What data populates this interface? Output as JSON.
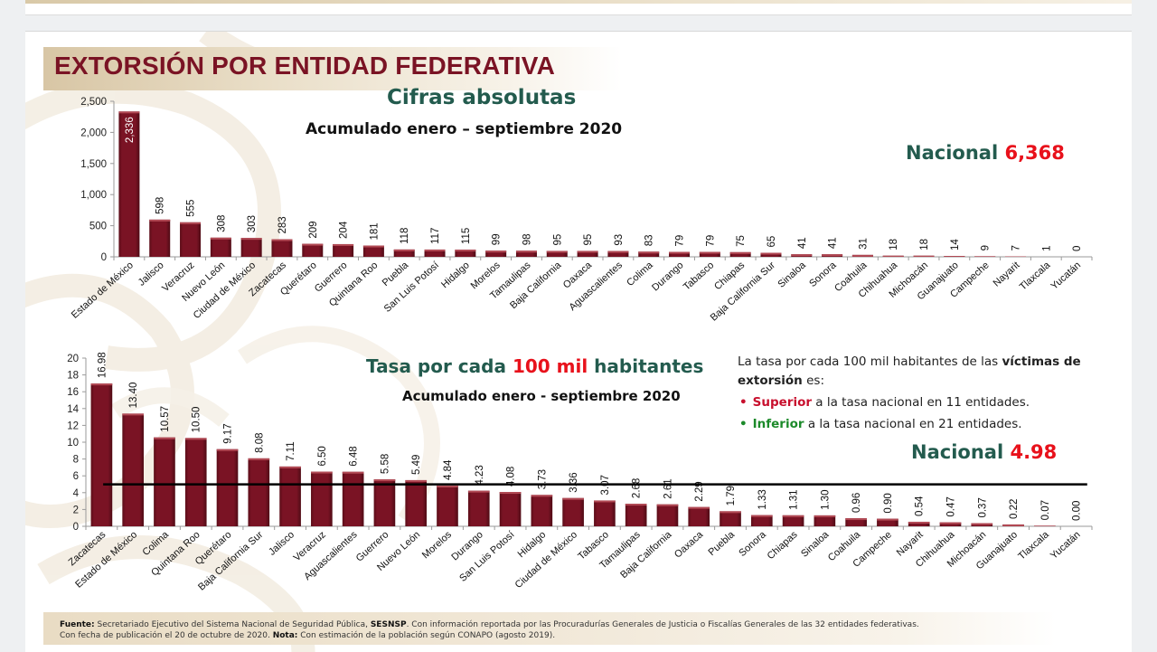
{
  "slide": {
    "title": "EXTORSIÓN POR ENTIDAD FEDERATIVA",
    "colors": {
      "bar": "#7a1324",
      "title": "#7a1324",
      "green": "#235b4e",
      "red": "#e8111b",
      "national_line": "#000000"
    }
  },
  "chart_data": [
    {
      "type": "bar",
      "title": "Cifras absolutas",
      "subtitle": "Acumulado enero – septiembre 2020",
      "national_label": "Nacional",
      "national_value": "6,368",
      "xlabel": "",
      "ylabel": "",
      "ylim": [
        0,
        2500
      ],
      "yticks": [
        0,
        500,
        1000,
        1500,
        2000,
        2500
      ],
      "ytick_labels": [
        "0",
        "500",
        "1,000",
        "1,500",
        "2,000",
        "2,500"
      ],
      "grid": false,
      "categories": [
        "Estado de México",
        "Jalisco",
        "Veracruz",
        "Nuevo León",
        "Ciudad de México",
        "Zacatecas",
        "Querétaro",
        "Guerrero",
        "Quintana Roo",
        "Puebla",
        "San Luis Potosí",
        "Hidalgo",
        "Morelos",
        "Tamaulipas",
        "Baja California",
        "Oaxaca",
        "Aguascalientes",
        "Colima",
        "Durango",
        "Tabasco",
        "Chiapas",
        "Baja California Sur",
        "Sinaloa",
        "Sonora",
        "Coahuila",
        "Chihuahua",
        "Michoacán",
        "Guanajuato",
        "Campeche",
        "Nayarit",
        "Tlaxcala",
        "Yucatán"
      ],
      "values": [
        2336,
        598,
        555,
        308,
        303,
        283,
        209,
        204,
        181,
        118,
        117,
        115,
        99,
        98,
        95,
        95,
        93,
        83,
        79,
        79,
        75,
        65,
        41,
        41,
        31,
        18,
        18,
        14,
        9,
        7,
        1,
        0
      ],
      "value_labels": [
        "2,336",
        "598",
        "555",
        "308",
        "303",
        "283",
        "209",
        "204",
        "181",
        "118",
        "117",
        "115",
        "99",
        "98",
        "95",
        "95",
        "93",
        "83",
        "79",
        "79",
        "75",
        "65",
        "41",
        "41",
        "31",
        "18",
        "18",
        "14",
        "9",
        "7",
        "1",
        "0"
      ]
    },
    {
      "type": "bar",
      "title_parts": [
        "Tasa por cada ",
        "100 mil",
        " habitantes"
      ],
      "subtitle": "Acumulado enero - septiembre 2020",
      "national_label": "Nacional",
      "national_value": "4.98",
      "national_line_value": 4.98,
      "xlabel": "",
      "ylabel": "",
      "ylim": [
        0,
        20
      ],
      "yticks": [
        0,
        2,
        4,
        6,
        8,
        10,
        12,
        14,
        16,
        18,
        20
      ],
      "ytick_labels": [
        "0",
        "2",
        "4",
        "6",
        "8",
        "10",
        "12",
        "14",
        "16",
        "18",
        "20"
      ],
      "grid": false,
      "categories": [
        "Zacatecas",
        "Estado de México",
        "Colima",
        "Quintana Roo",
        "Querétaro",
        "Baja California Sur",
        "Jalisco",
        "Veracruz",
        "Aguascalientes",
        "Guerrero",
        "Nuevo León",
        "Morelos",
        "Durango",
        "San Luis Potosí",
        "Hidalgo",
        "Ciudad de México",
        "Tabasco",
        "Tamaulipas",
        "Baja California",
        "Oaxaca",
        "Puebla",
        "Sonora",
        "Chiapas",
        "Sinaloa",
        "Coahuila",
        "Campeche",
        "Nayarit",
        "Chihuahua",
        "Michoacán",
        "Guanajuato",
        "Tlaxcala",
        "Yucatán"
      ],
      "values": [
        16.98,
        13.4,
        10.57,
        10.5,
        9.17,
        8.08,
        7.11,
        6.5,
        6.48,
        5.58,
        5.49,
        4.84,
        4.23,
        4.08,
        3.73,
        3.36,
        3.07,
        2.68,
        2.61,
        2.29,
        1.79,
        1.33,
        1.31,
        1.3,
        0.96,
        0.9,
        0.54,
        0.47,
        0.37,
        0.22,
        0.07,
        0.0
      ],
      "value_labels": [
        "16.98",
        "13.40",
        "10.57",
        "10.50",
        "9.17",
        "8.08",
        "7.11",
        "6.50",
        "6.48",
        "5.58",
        "5.49",
        "4.84",
        "4.23",
        "4.08",
        "3.73",
        "3.36",
        "3.07",
        "2.68",
        "2.61",
        "2.29",
        "1.79",
        "1.33",
        "1.31",
        "1.30",
        "0.96",
        "0.90",
        "0.54",
        "0.47",
        "0.37",
        "0.22",
        "0.07",
        "0.00"
      ]
    }
  ],
  "note": {
    "intro_plain": "La tasa por cada 100 mil habitantes de las ",
    "intro_bold": "víctimas de extorsión",
    "intro_end": " es:",
    "bullets": [
      {
        "bold": "Superior",
        "text": " a la tasa nacional en 11 entidades."
      },
      {
        "bold": "Inferior",
        "text": " a la tasa nacional en 21 entidades."
      }
    ],
    "bullet_symbol": "•"
  },
  "footer": {
    "source_label": "Fuente:",
    "source_text": " Secretariado Ejecutivo del Sistema Nacional de Seguridad Pública, ",
    "source_bold": "SESNSP",
    "source_rest": ". Con información reportada por las Procuradurías Generales de Justicia o Fiscalías Generales de las 32 entidades federativas.",
    "line2_text": "Con fecha de publicación el 20  de octubre de 2020. ",
    "note_label": "Nota:",
    "note_text": " Con estimación de la población según CONAPO (agosto 2019)."
  }
}
